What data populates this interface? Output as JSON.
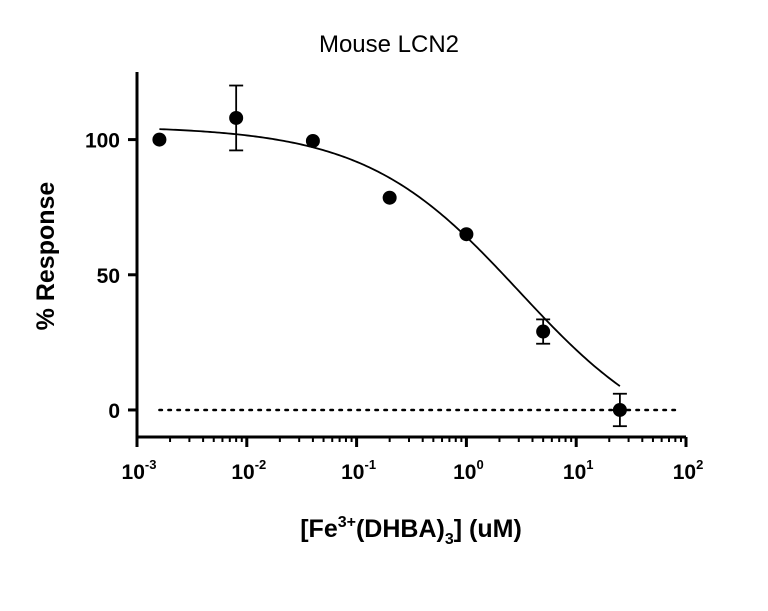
{
  "chart_data": {
    "type": "scatter",
    "title": "Mouse LCN2",
    "xlabel": {
      "prefix": "[Fe",
      "sup": "3+",
      "middle": "(DHBA)",
      "sub": "3",
      "suffix": "] (uM)"
    },
    "ylabel": "% Response",
    "x_scale": "log",
    "xlim": [
      0.001,
      100
    ],
    "ylim": [
      -10,
      125
    ],
    "x_ticks": [
      {
        "value": 0.001,
        "base": "10",
        "exp": "-3"
      },
      {
        "value": 0.01,
        "base": "10",
        "exp": "-2"
      },
      {
        "value": 0.1,
        "base": "10",
        "exp": "-1"
      },
      {
        "value": 1,
        "base": "10",
        "exp": "0"
      },
      {
        "value": 10,
        "base": "10",
        "exp": "1"
      },
      {
        "value": 100,
        "base": "10",
        "exp": "2"
      }
    ],
    "y_ticks": [
      {
        "value": 0,
        "label": "0"
      },
      {
        "value": 50,
        "label": "50"
      },
      {
        "value": 100,
        "label": "100"
      }
    ],
    "series": [
      {
        "points": [
          {
            "x": 0.0016,
            "y": 100,
            "err": 0
          },
          {
            "x": 0.008,
            "y": 108,
            "err": 12
          },
          {
            "x": 0.04,
            "y": 99.5,
            "err": 0
          },
          {
            "x": 0.2,
            "y": 78.5,
            "err": 0
          },
          {
            "x": 1.0,
            "y": 65,
            "err": 0
          },
          {
            "x": 5.0,
            "y": 29,
            "err": 4.5
          },
          {
            "x": 25.0,
            "y": 0,
            "err": 6
          }
        ],
        "fit": {
          "model": "four-parameter logistic",
          "top": 105,
          "bottom": -17,
          "ic50": 3.0,
          "hill": 0.62,
          "x_range": [
            0.0016,
            25
          ]
        }
      }
    ],
    "reference_line": {
      "y": 0,
      "style": "dotted",
      "x_range": [
        0.0016,
        100
      ]
    },
    "grid": false,
    "legend": "none"
  }
}
